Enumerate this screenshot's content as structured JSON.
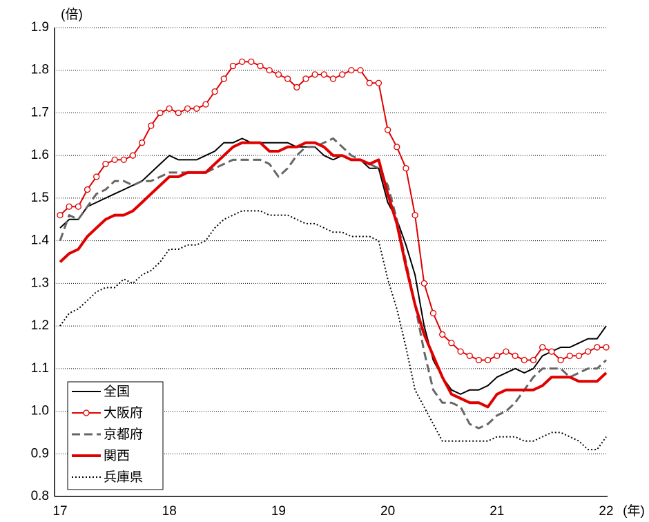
{
  "chart_data": {
    "type": "line",
    "y_label": "(倍)",
    "x_label": "(年)",
    "categories": [
      "17",
      null,
      null,
      null,
      null,
      null,
      null,
      null,
      null,
      null,
      null,
      null,
      "18",
      null,
      null,
      null,
      null,
      null,
      null,
      null,
      null,
      null,
      null,
      null,
      "19",
      null,
      null,
      null,
      null,
      null,
      null,
      null,
      null,
      null,
      null,
      null,
      "20",
      null,
      null,
      null,
      null,
      null,
      null,
      null,
      null,
      null,
      null,
      null,
      "21",
      null,
      null,
      null,
      null,
      null,
      null,
      null,
      null,
      null,
      null,
      null,
      "22"
    ],
    "ylim": [
      0.8,
      1.9
    ],
    "yticks": [
      0.8,
      0.9,
      {
        "value": 1,
        "label": "1.0"
      },
      1.1,
      1.2,
      1.3,
      1.4,
      1.5,
      1.6,
      1.7,
      1.8,
      1.9
    ],
    "grid": true,
    "legend": "lower left",
    "series": [
      {
        "name": "全国",
        "color": "#000000",
        "width": 2,
        "dash": "solid",
        "marker": "none",
        "values": [
          1.43,
          1.45,
          1.45,
          1.48,
          1.49,
          1.5,
          1.51,
          1.52,
          1.53,
          1.54,
          1.56,
          1.58,
          1.6,
          1.59,
          1.59,
          1.59,
          1.6,
          1.61,
          1.63,
          1.63,
          1.64,
          1.63,
          1.63,
          1.63,
          1.63,
          1.63,
          1.62,
          1.62,
          1.62,
          1.6,
          1.59,
          1.6,
          1.59,
          1.59,
          1.57,
          1.57,
          1.49,
          1.45,
          1.39,
          1.32,
          1.2,
          1.12,
          1.08,
          1.05,
          1.04,
          1.05,
          1.05,
          1.06,
          1.08,
          1.09,
          1.1,
          1.09,
          1.1,
          1.13,
          1.14,
          1.15,
          1.15,
          1.16,
          1.17,
          1.17,
          1.2
        ]
      },
      {
        "name": "大阪府",
        "color": "#e00000",
        "width": 2,
        "dash": "solid",
        "marker": "circle",
        "values": [
          1.46,
          1.48,
          1.48,
          1.52,
          1.55,
          1.58,
          1.59,
          1.59,
          1.6,
          1.63,
          1.67,
          1.7,
          1.71,
          1.7,
          1.71,
          1.71,
          1.72,
          1.75,
          1.78,
          1.81,
          1.82,
          1.82,
          1.81,
          1.8,
          1.79,
          1.78,
          1.76,
          1.78,
          1.79,
          1.79,
          1.78,
          1.79,
          1.8,
          1.8,
          1.77,
          1.77,
          1.66,
          1.62,
          1.57,
          1.46,
          1.3,
          1.23,
          1.18,
          1.16,
          1.14,
          1.13,
          1.12,
          1.12,
          1.13,
          1.14,
          1.13,
          1.12,
          1.12,
          1.15,
          1.14,
          1.12,
          1.13,
          1.13,
          1.14,
          1.15,
          1.15
        ]
      },
      {
        "name": "京都府",
        "color": "#666666",
        "width": 3,
        "dash": "dash",
        "marker": "none",
        "values": [
          1.4,
          1.46,
          1.45,
          1.48,
          1.51,
          1.52,
          1.54,
          1.54,
          1.53,
          1.54,
          1.54,
          1.55,
          1.56,
          1.56,
          1.56,
          1.56,
          1.56,
          1.57,
          1.58,
          1.59,
          1.59,
          1.59,
          1.59,
          1.58,
          1.55,
          1.57,
          1.6,
          1.62,
          1.62,
          1.63,
          1.64,
          1.62,
          1.6,
          1.59,
          1.58,
          1.57,
          1.53,
          1.45,
          1.35,
          1.25,
          1.14,
          1.05,
          1.02,
          1.02,
          1.01,
          0.97,
          0.96,
          0.97,
          0.99,
          1.0,
          1.02,
          1.05,
          1.08,
          1.1,
          1.1,
          1.1,
          1.08,
          1.09,
          1.1,
          1.1,
          1.12
        ]
      },
      {
        "name": "関西",
        "color": "#e00000",
        "width": 4,
        "dash": "solid",
        "marker": "none",
        "values": [
          1.35,
          1.37,
          1.38,
          1.41,
          1.43,
          1.45,
          1.46,
          1.46,
          1.47,
          1.49,
          1.51,
          1.53,
          1.55,
          1.55,
          1.56,
          1.56,
          1.56,
          1.58,
          1.6,
          1.62,
          1.63,
          1.63,
          1.63,
          1.61,
          1.61,
          1.62,
          1.62,
          1.63,
          1.63,
          1.62,
          1.6,
          1.6,
          1.59,
          1.59,
          1.58,
          1.59,
          1.51,
          1.44,
          1.34,
          1.25,
          1.18,
          1.13,
          1.08,
          1.04,
          1.03,
          1.02,
          1.02,
          1.01,
          1.04,
          1.05,
          1.05,
          1.05,
          1.05,
          1.06,
          1.08,
          1.08,
          1.08,
          1.07,
          1.07,
          1.07,
          1.09
        ]
      },
      {
        "name": "兵庫県",
        "color": "#000000",
        "width": 2,
        "dash": "dot",
        "marker": "none",
        "values": [
          1.2,
          1.23,
          1.24,
          1.26,
          1.28,
          1.29,
          1.29,
          1.31,
          1.3,
          1.32,
          1.33,
          1.35,
          1.38,
          1.38,
          1.39,
          1.39,
          1.4,
          1.43,
          1.45,
          1.46,
          1.47,
          1.47,
          1.47,
          1.46,
          1.46,
          1.46,
          1.45,
          1.44,
          1.44,
          1.43,
          1.42,
          1.42,
          1.41,
          1.41,
          1.41,
          1.4,
          1.31,
          1.24,
          1.15,
          1.05,
          1.01,
          0.97,
          0.93,
          0.93,
          0.93,
          0.93,
          0.93,
          0.93,
          0.94,
          0.94,
          0.94,
          0.93,
          0.93,
          0.94,
          0.95,
          0.95,
          0.94,
          0.93,
          0.91,
          0.91,
          0.94
        ]
      }
    ]
  }
}
